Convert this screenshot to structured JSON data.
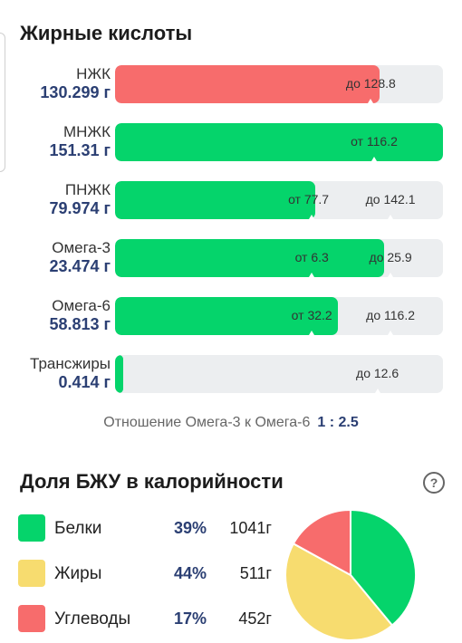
{
  "fatty_acids": {
    "title": "Жирные кислоты",
    "rows": [
      {
        "name": "НЖК",
        "amount": "130.299 г",
        "fill_color": "#f76c6c",
        "fill_fraction": 0.806,
        "marks": [
          {
            "text": "до 128.8",
            "pos": 0.78,
            "tick": 0.78
          }
        ]
      },
      {
        "name": "МНЖК",
        "amount": "151.31 г",
        "fill_color": "#05d46b",
        "fill_fraction": 1.0,
        "marks": [
          {
            "text": "от 116.2",
            "pos": 0.79,
            "tick": 0.79
          }
        ]
      },
      {
        "name": "ПНЖК",
        "amount": "79.974 г",
        "fill_color": "#05d46b",
        "fill_fraction": 0.61,
        "marks": [
          {
            "text": "от 77.7",
            "pos": 0.59,
            "tick": 0.6
          },
          {
            "text": "до 142.1",
            "pos": 0.84,
            "tick": 0.84
          }
        ]
      },
      {
        "name": "Омега-3",
        "amount": "23.474 г",
        "fill_color": "#05d46b",
        "fill_fraction": 0.82,
        "marks": [
          {
            "text": "от 6.3",
            "pos": 0.6,
            "tick": 0.6
          },
          {
            "text": "до 25.9",
            "pos": 0.84,
            "tick": 0.84
          }
        ]
      },
      {
        "name": "Омега-6",
        "amount": "58.813 г",
        "fill_color": "#05d46b",
        "fill_fraction": 0.68,
        "marks": [
          {
            "text": "от 32.2",
            "pos": 0.6,
            "tick": 0.6
          },
          {
            "text": "до 116.2",
            "pos": 0.84,
            "tick": 0.84
          }
        ]
      },
      {
        "name": "Трансжиры",
        "amount": "0.414 г",
        "fill_color": "#05d46b",
        "fill_fraction": 0.025,
        "marks": [
          {
            "text": "до 12.6",
            "pos": 0.8,
            "tick": 0.8
          }
        ]
      }
    ],
    "ratio_label": "Отношение Омега-3 к Омега-6",
    "ratio_value": "1 : 2.5"
  },
  "bju": {
    "title": "Доля БЖУ в калорийности",
    "help_icon": "question-circle-icon",
    "legend": [
      {
        "name": "Белки",
        "percent": "39%",
        "grams": "1041г",
        "color": "#05d46b"
      },
      {
        "name": "Жиры",
        "percent": "44%",
        "grams": "511г",
        "color": "#f7dc6f"
      },
      {
        "name": "Углеводы",
        "percent": "17%",
        "grams": "452г",
        "color": "#f76c6c"
      }
    ]
  },
  "chart_data": {
    "type": "pie",
    "categories": [
      "Белки",
      "Жиры",
      "Углеводы"
    ],
    "values": [
      39,
      44,
      17
    ],
    "colors": [
      "#05d46b",
      "#f7dc6f",
      "#f76c6c"
    ]
  }
}
